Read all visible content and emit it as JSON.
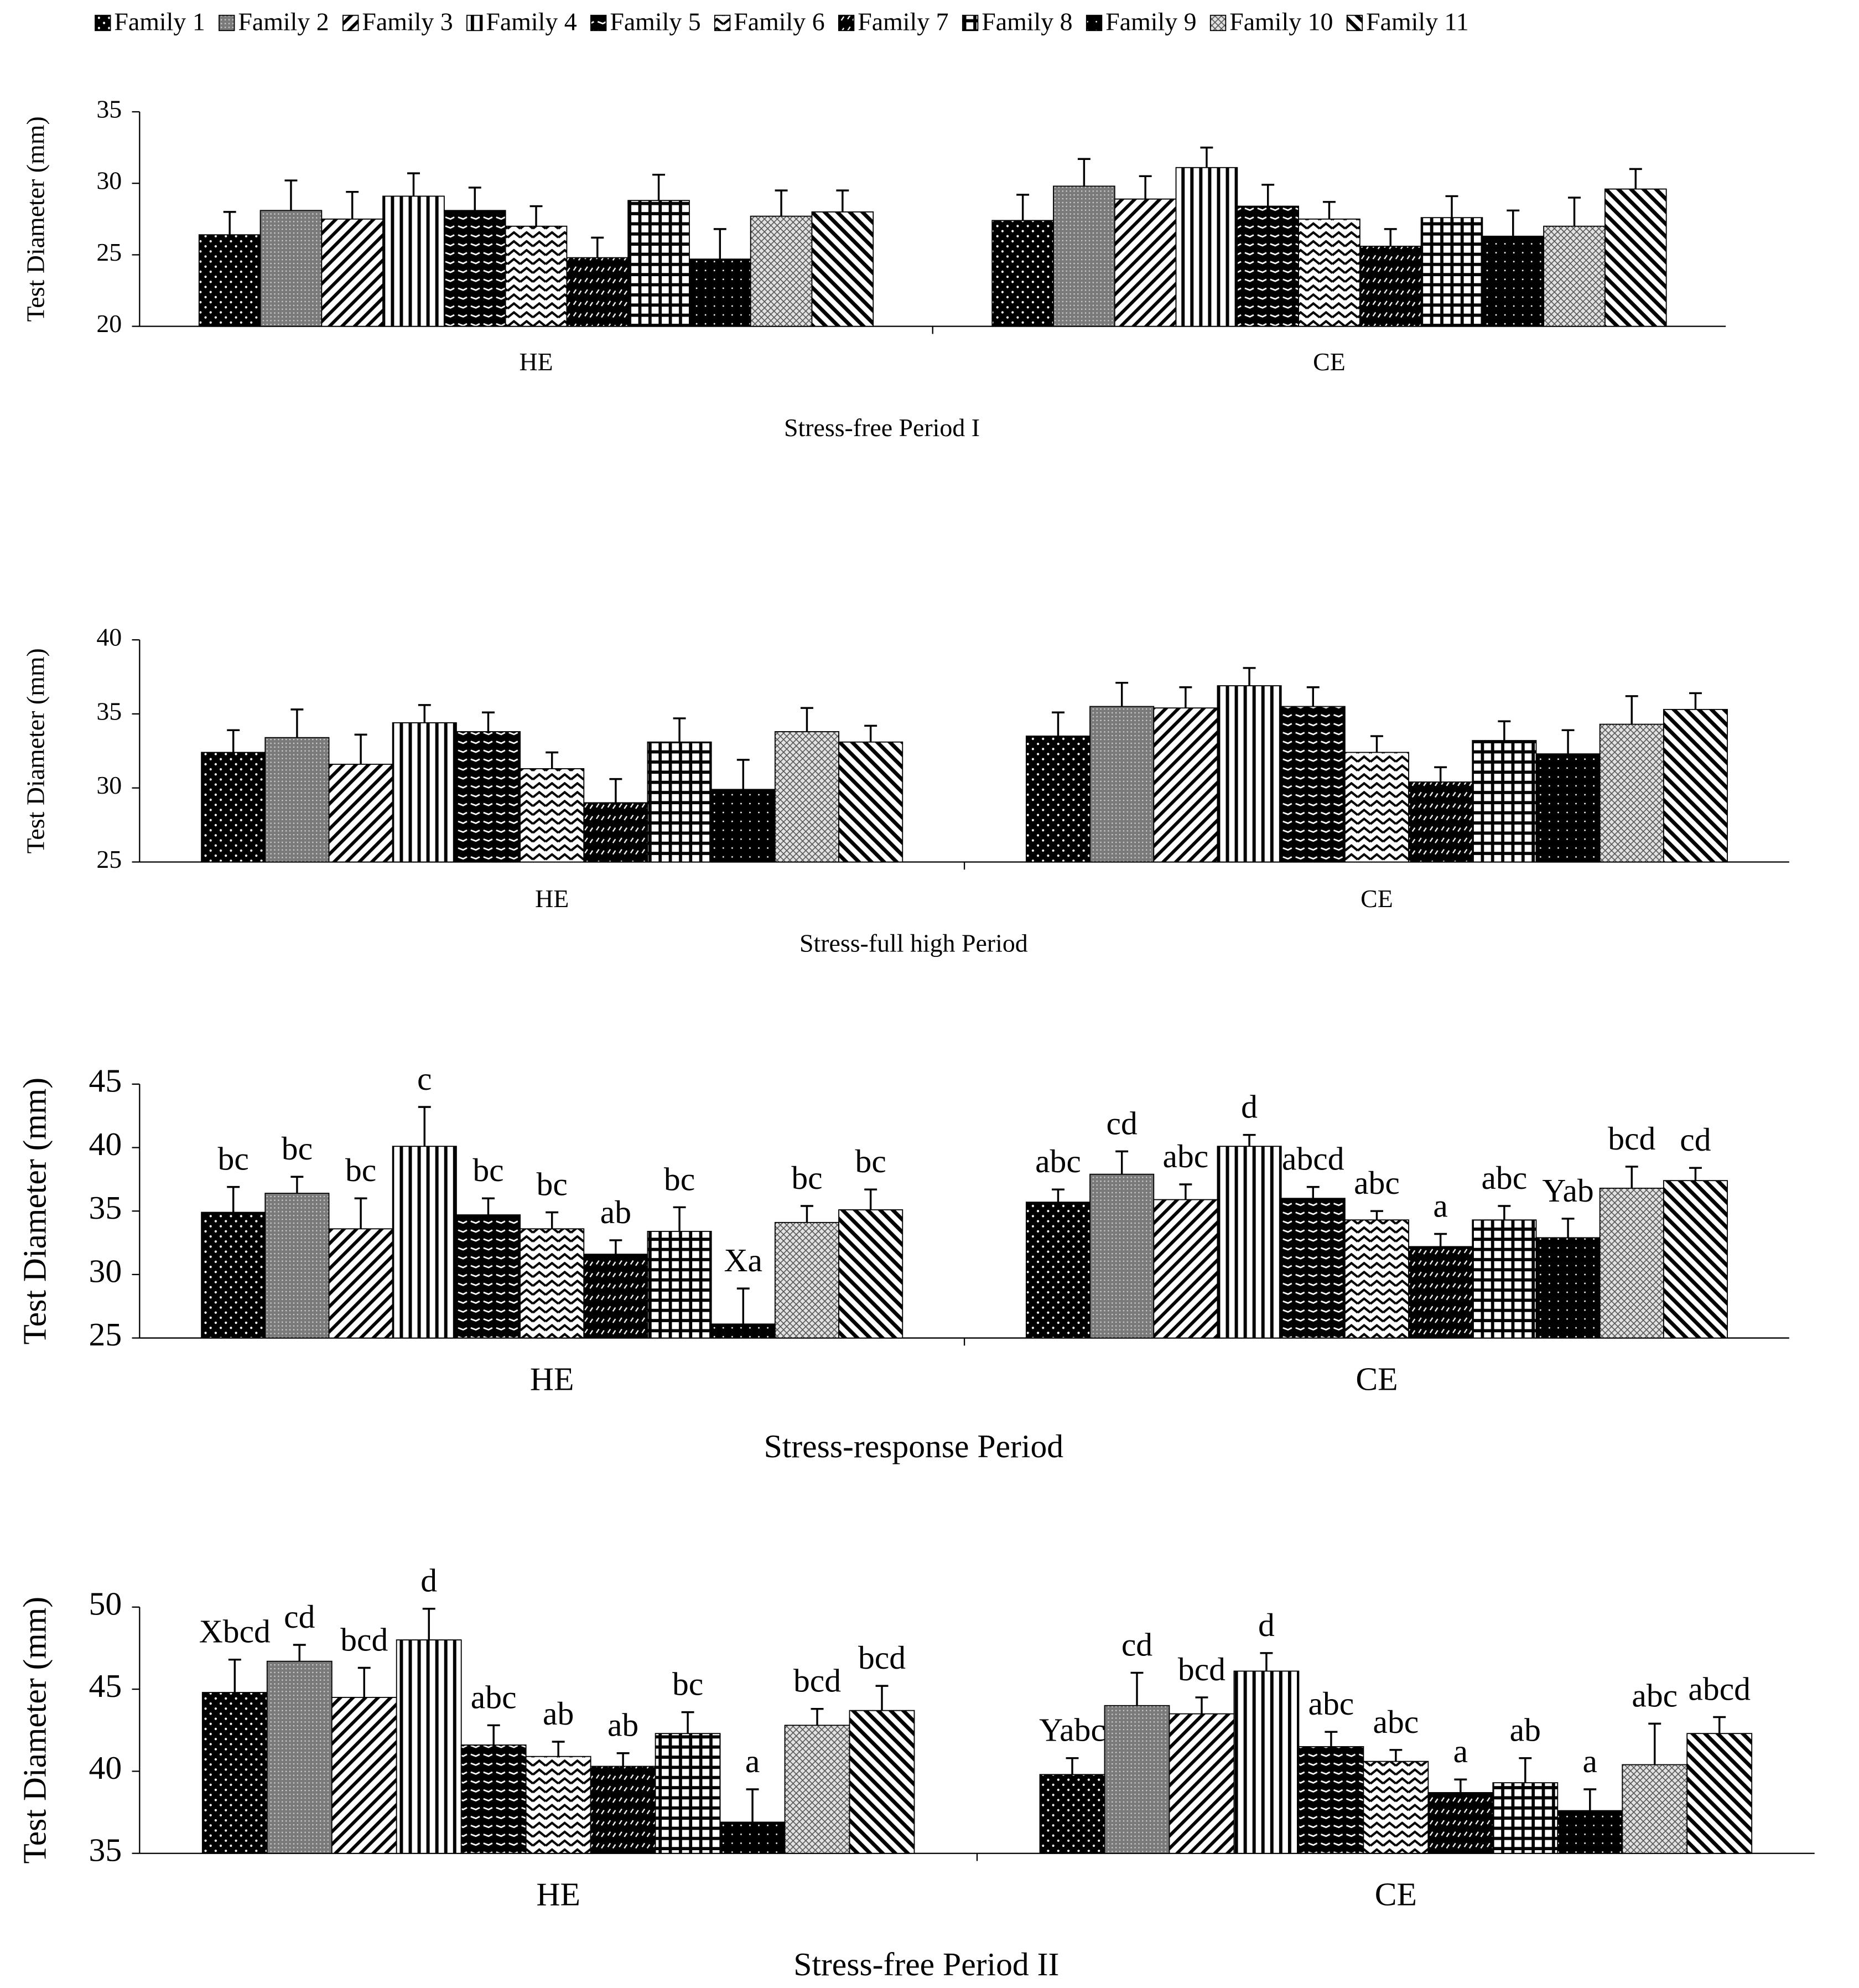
{
  "chart_data": [
    {
      "type": "bar",
      "title": "Stress-free Period I",
      "y_label": "Test Diameter (mm)",
      "categories": [
        "HE",
        "CE"
      ],
      "ylim": [
        20,
        35
      ],
      "yticks": [
        20,
        25,
        30,
        35
      ],
      "legend": "top",
      "series": [
        {
          "name": "Family 1",
          "pattern": "dots",
          "values": [
            26.4,
            27.4
          ],
          "errors": [
            1.6,
            1.8
          ]
        },
        {
          "name": "Family 2",
          "pattern": "gray",
          "values": [
            28.1,
            29.8
          ],
          "errors": [
            2.1,
            1.9
          ]
        },
        {
          "name": "Family 3",
          "pattern": "back",
          "values": [
            27.5,
            28.9
          ],
          "errors": [
            1.9,
            1.6
          ]
        },
        {
          "name": "Family 4",
          "pattern": "vertical",
          "values": [
            29.1,
            31.1
          ],
          "errors": [
            1.6,
            1.4
          ]
        },
        {
          "name": "Family 5",
          "pattern": "dashes",
          "values": [
            28.1,
            28.4
          ],
          "errors": [
            1.6,
            1.5
          ]
        },
        {
          "name": "Family 6",
          "pattern": "zigzag",
          "values": [
            27.0,
            27.5
          ],
          "errors": [
            1.4,
            1.2
          ]
        },
        {
          "name": "Family 7",
          "pattern": "diamond",
          "values": [
            24.8,
            25.6
          ],
          "errors": [
            1.4,
            1.2
          ]
        },
        {
          "name": "Family 8",
          "pattern": "grid",
          "values": [
            28.8,
            27.6
          ],
          "errors": [
            1.8,
            1.5
          ]
        },
        {
          "name": "Family 9",
          "pattern": "dense",
          "values": [
            24.7,
            26.3
          ],
          "errors": [
            2.1,
            1.8
          ]
        },
        {
          "name": "Family 10",
          "pattern": "cross",
          "values": [
            27.7,
            27.0
          ],
          "errors": [
            1.8,
            2.0
          ]
        },
        {
          "name": "Family 11",
          "pattern": "diag",
          "values": [
            28.0,
            29.6
          ],
          "errors": [
            1.5,
            1.4
          ]
        }
      ]
    },
    {
      "type": "bar",
      "title": "Stress-full high Period",
      "y_label": "Test Diameter (mm)",
      "categories": [
        "HE",
        "CE"
      ],
      "ylim": [
        25,
        40
      ],
      "yticks": [
        25,
        30,
        35,
        40
      ],
      "series": [
        {
          "name": "Family 1",
          "pattern": "dots",
          "values": [
            32.4,
            33.5
          ],
          "errors": [
            1.5,
            1.6
          ]
        },
        {
          "name": "Family 2",
          "pattern": "gray",
          "values": [
            33.4,
            35.5
          ],
          "errors": [
            1.9,
            1.6
          ]
        },
        {
          "name": "Family 3",
          "pattern": "back",
          "values": [
            31.6,
            35.4
          ],
          "errors": [
            2.0,
            1.4
          ]
        },
        {
          "name": "Family 4",
          "pattern": "vertical",
          "values": [
            34.4,
            36.9
          ],
          "errors": [
            1.2,
            1.2
          ]
        },
        {
          "name": "Family 5",
          "pattern": "dashes",
          "values": [
            33.8,
            35.5
          ],
          "errors": [
            1.3,
            1.3
          ]
        },
        {
          "name": "Family 6",
          "pattern": "zigzag",
          "values": [
            31.3,
            32.4
          ],
          "errors": [
            1.1,
            1.1
          ]
        },
        {
          "name": "Family 7",
          "pattern": "diamond",
          "values": [
            29.0,
            30.4
          ],
          "errors": [
            1.6,
            1.0
          ]
        },
        {
          "name": "Family 8",
          "pattern": "grid",
          "values": [
            33.1,
            33.2
          ],
          "errors": [
            1.6,
            1.3
          ]
        },
        {
          "name": "Family 9",
          "pattern": "dense",
          "values": [
            29.9,
            32.3
          ],
          "errors": [
            2.0,
            1.6
          ]
        },
        {
          "name": "Family 10",
          "pattern": "cross",
          "values": [
            33.8,
            34.3
          ],
          "errors": [
            1.6,
            1.9
          ]
        },
        {
          "name": "Family 11",
          "pattern": "diag",
          "values": [
            33.1,
            35.3
          ],
          "errors": [
            1.1,
            1.1
          ]
        }
      ]
    },
    {
      "type": "bar",
      "title": "Stress-response Period",
      "y_label": "Test Diameter (mm)",
      "categories": [
        "HE",
        "CE"
      ],
      "ylim": [
        25,
        45
      ],
      "yticks": [
        25,
        30,
        35,
        40,
        45
      ],
      "series": [
        {
          "name": "Family 1",
          "pattern": "dots",
          "values": [
            34.9,
            35.7
          ],
          "errors": [
            2.0,
            1.0
          ],
          "letters": [
            "bc",
            "abc"
          ]
        },
        {
          "name": "Family 2",
          "pattern": "gray",
          "values": [
            36.4,
            37.9
          ],
          "errors": [
            1.3,
            1.8
          ],
          "letters": [
            "bc",
            "cd"
          ]
        },
        {
          "name": "Family 3",
          "pattern": "back",
          "values": [
            33.6,
            35.9
          ],
          "errors": [
            2.4,
            1.2
          ],
          "letters": [
            "bc",
            "abc"
          ]
        },
        {
          "name": "Family 4",
          "pattern": "vertical",
          "values": [
            40.1,
            40.1
          ],
          "errors": [
            3.1,
            0.9
          ],
          "letters": [
            "c",
            "d"
          ]
        },
        {
          "name": "Family 5",
          "pattern": "dashes",
          "values": [
            34.7,
            36.0
          ],
          "errors": [
            1.3,
            0.9
          ],
          "letters": [
            "bc",
            "abcd"
          ]
        },
        {
          "name": "Family 6",
          "pattern": "zigzag",
          "values": [
            33.6,
            34.3
          ],
          "errors": [
            1.3,
            0.7
          ],
          "letters": [
            "bc",
            "abc"
          ]
        },
        {
          "name": "Family 7",
          "pattern": "diamond",
          "values": [
            31.6,
            32.2
          ],
          "errors": [
            1.1,
            1.0
          ],
          "letters": [
            "ab",
            "a"
          ]
        },
        {
          "name": "Family 8",
          "pattern": "grid",
          "values": [
            33.4,
            34.3
          ],
          "errors": [
            1.9,
            1.1
          ],
          "letters": [
            "bc",
            "abc"
          ]
        },
        {
          "name": "Family 9",
          "pattern": "dense",
          "values": [
            26.1,
            32.9
          ],
          "errors": [
            2.8,
            1.5
          ],
          "letters": [
            "Xa",
            "Yab"
          ]
        },
        {
          "name": "Family 10",
          "pattern": "cross",
          "values": [
            34.1,
            36.8
          ],
          "errors": [
            1.3,
            1.7
          ],
          "letters": [
            "bc",
            "bcd"
          ]
        },
        {
          "name": "Family 11",
          "pattern": "diag",
          "values": [
            35.1,
            37.4
          ],
          "errors": [
            1.6,
            1.0
          ],
          "letters": [
            "bc",
            "cd"
          ]
        }
      ]
    },
    {
      "type": "bar",
      "title": "Stress-free Period II",
      "y_label": "Test Diameter (mm)",
      "categories": [
        "HE",
        "CE"
      ],
      "ylim": [
        35,
        50
      ],
      "yticks": [
        35,
        40,
        45,
        50
      ],
      "series": [
        {
          "name": "Family 1",
          "pattern": "dots",
          "values": [
            44.8,
            39.8
          ],
          "errors": [
            2.0,
            1.0
          ],
          "letters": [
            "Xbcd",
            "Yabc"
          ]
        },
        {
          "name": "Family 2",
          "pattern": "gray",
          "values": [
            46.7,
            44.0
          ],
          "errors": [
            1.0,
            2.0
          ],
          "letters": [
            "cd",
            "cd"
          ]
        },
        {
          "name": "Family 3",
          "pattern": "back",
          "values": [
            44.5,
            43.5
          ],
          "errors": [
            1.8,
            1.0
          ],
          "letters": [
            "bcd",
            "bcd"
          ]
        },
        {
          "name": "Family 4",
          "pattern": "vertical",
          "values": [
            48.0,
            46.1
          ],
          "errors": [
            1.9,
            1.1
          ],
          "letters": [
            "d",
            "d"
          ]
        },
        {
          "name": "Family 5",
          "pattern": "dashes",
          "values": [
            41.6,
            41.5
          ],
          "errors": [
            1.2,
            0.9
          ],
          "letters": [
            "abc",
            "abc"
          ]
        },
        {
          "name": "Family 6",
          "pattern": "zigzag",
          "values": [
            40.9,
            40.6
          ],
          "errors": [
            0.9,
            0.7
          ],
          "letters": [
            "ab",
            "abc"
          ]
        },
        {
          "name": "Family 7",
          "pattern": "diamond",
          "values": [
            40.3,
            38.7
          ],
          "errors": [
            0.8,
            0.8
          ],
          "letters": [
            "ab",
            "a"
          ]
        },
        {
          "name": "Family 8",
          "pattern": "grid",
          "values": [
            42.3,
            39.3
          ],
          "errors": [
            1.3,
            1.5
          ],
          "letters": [
            "bc",
            "ab"
          ]
        },
        {
          "name": "Family 9",
          "pattern": "dense",
          "values": [
            36.9,
            37.6
          ],
          "errors": [
            2.0,
            1.3
          ],
          "letters": [
            "a",
            "a"
          ]
        },
        {
          "name": "Family 10",
          "pattern": "cross",
          "values": [
            42.8,
            40.4
          ],
          "errors": [
            1.0,
            2.5
          ],
          "letters": [
            "bcd",
            "abc"
          ]
        },
        {
          "name": "Family 11",
          "pattern": "diag",
          "values": [
            43.7,
            42.3
          ],
          "errors": [
            1.5,
            1.0
          ],
          "letters": [
            "bcd",
            "abcd"
          ]
        }
      ]
    }
  ]
}
